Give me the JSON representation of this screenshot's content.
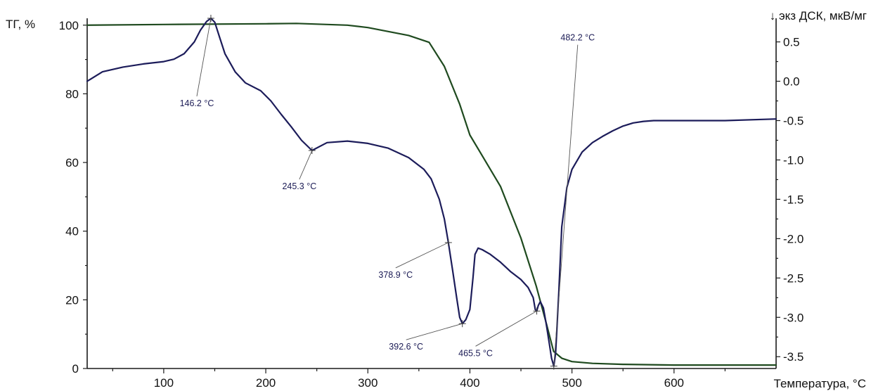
{
  "chart_data": {
    "type": "line",
    "x_axis": {
      "label": "Температура, °C",
      "range": [
        25,
        700
      ],
      "ticks": [
        100,
        200,
        300,
        400,
        500,
        600
      ]
    },
    "y_left": {
      "label": "ТГ, %",
      "range": [
        0,
        102
      ],
      "ticks": [
        0,
        20,
        40,
        60,
        80,
        100
      ]
    },
    "y_right": {
      "label": "↓ экз ДСК, мкВ/мг",
      "range": [
        -3.65,
        0.8
      ],
      "ticks": [
        0.5,
        0.0,
        -0.5,
        -1.0,
        -1.5,
        -2.0,
        -2.5,
        -3.0,
        -3.5
      ],
      "tick_labels": [
        "0.5",
        "0.0",
        "-0.5",
        "-1.0",
        "-1.5",
        "-2.0",
        "-2.5",
        "-3.0",
        "-3.5"
      ]
    },
    "grid": false,
    "series": [
      {
        "name": "ТГ",
        "axis": "left",
        "color": "#1f4a1f",
        "x": [
          25,
          100,
          200,
          230,
          280,
          300,
          340,
          360,
          375,
          390,
          400,
          410,
          430,
          450,
          465,
          475,
          482,
          490,
          500,
          520,
          550,
          600,
          650,
          700
        ],
        "y": [
          100,
          100.2,
          100.4,
          100.5,
          100,
          99.3,
          97,
          95,
          88,
          77,
          68,
          63,
          53,
          38,
          24,
          13,
          5,
          3,
          2,
          1.5,
          1.2,
          1.0,
          1.0,
          1.0
        ]
      },
      {
        "name": "ДСК",
        "axis": "right",
        "color": "#1c1c5a",
        "x": [
          25,
          40,
          60,
          80,
          100,
          110,
          120,
          130,
          136,
          142,
          146.2,
          150,
          155,
          160,
          170,
          180,
          195,
          205,
          215,
          225,
          235,
          245.3,
          260,
          280,
          300,
          320,
          340,
          355,
          362,
          370,
          375,
          378.9,
          383,
          387,
          390,
          392.6,
          396,
          400,
          403,
          405,
          408,
          412,
          420,
          430,
          440,
          450,
          457,
          462,
          464,
          465.5,
          467,
          469,
          472,
          475,
          478,
          480,
          482.2,
          484,
          487,
          490,
          495,
          500,
          510,
          520,
          530,
          540,
          550,
          560,
          570,
          580,
          600,
          650,
          700
        ],
        "y": [
          0.0,
          0.12,
          0.18,
          0.22,
          0.25,
          0.28,
          0.35,
          0.5,
          0.65,
          0.76,
          0.8,
          0.75,
          0.55,
          0.35,
          0.12,
          -0.02,
          -0.12,
          -0.25,
          -0.42,
          -0.58,
          -0.75,
          -0.88,
          -0.78,
          -0.76,
          -0.79,
          -0.85,
          -0.97,
          -1.12,
          -1.24,
          -1.5,
          -1.75,
          -2.05,
          -2.4,
          -2.75,
          -3.0,
          -3.08,
          -3.03,
          -2.9,
          -2.5,
          -2.2,
          -2.12,
          -2.14,
          -2.2,
          -2.3,
          -2.42,
          -2.52,
          -2.62,
          -2.75,
          -2.9,
          -2.92,
          -2.85,
          -2.8,
          -2.88,
          -3.1,
          -3.35,
          -3.52,
          -3.62,
          -3.45,
          -2.7,
          -1.85,
          -1.35,
          -1.12,
          -0.9,
          -0.78,
          -0.7,
          -0.63,
          -0.57,
          -0.53,
          -0.51,
          -0.5,
          -0.5,
          -0.5,
          -0.48
        ]
      }
    ],
    "annotations": [
      {
        "text": "146.2 °C",
        "series": "ДСК",
        "x": 146.2
      },
      {
        "text": "245.3 °C",
        "series": "ДСК",
        "x": 245.3
      },
      {
        "text": "378.9 °C",
        "series": "ДСК",
        "x": 378.9
      },
      {
        "text": "392.6 °C",
        "series": "ДСК",
        "x": 392.6
      },
      {
        "text": "465.5 °C",
        "series": "ДСК",
        "x": 465.5
      },
      {
        "text": "482.2 °C",
        "series": "ДСК",
        "x": 482.2
      }
    ]
  }
}
